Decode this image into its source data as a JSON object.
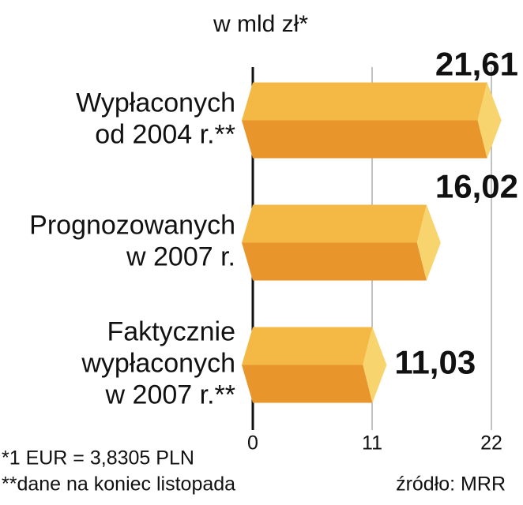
{
  "chart_data": {
    "type": "bar",
    "orientation": "horizontal",
    "title": "w mld zł*",
    "categories": [
      [
        "Wypłaconych",
        "od 2004 r.**"
      ],
      [
        "Prognozowanych",
        "w 2007 r."
      ],
      [
        "Faktycznie",
        "wypłaconych",
        "w 2007 r.**"
      ]
    ],
    "values": [
      21.61,
      16.02,
      11.03
    ],
    "value_labels": [
      "21,61",
      "16,02",
      "11,03"
    ],
    "colors": {
      "top": "#f4b944",
      "bottom": "#e8952b",
      "cap": "#f8d46e"
    },
    "xlim": [
      0,
      22
    ],
    "xticks": [
      0,
      11,
      22
    ],
    "notes": [
      "*1 EUR = 3,8305 PLN",
      "**dane na koniec listopada"
    ],
    "source": "źródło: MRR"
  }
}
